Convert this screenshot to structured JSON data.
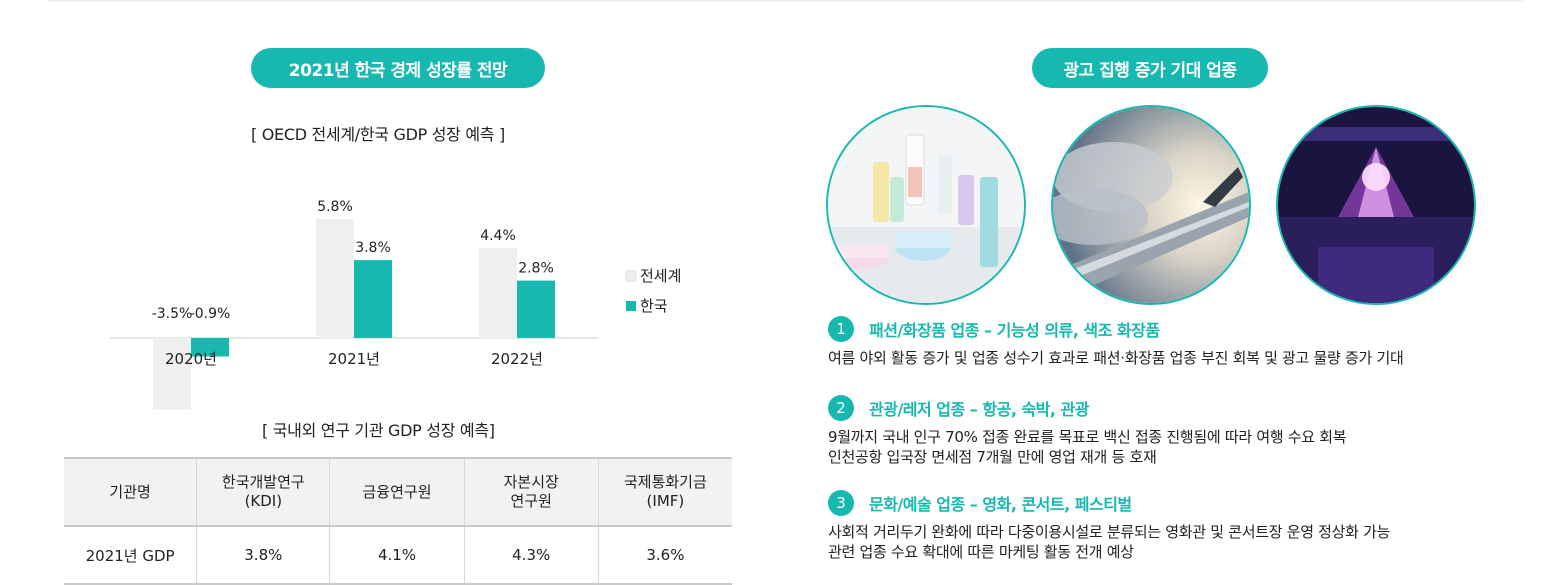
{
  "left": {
    "pill": "2021년 한국 경제 성장률 전망",
    "chart_subtitle": "[ OECD 전세계/한국 GDP 성장 예측 ]",
    "table_subtitle": "[ 국내외 연구 기관 GDP 성장 예측]",
    "table": {
      "headers": [
        [
          "기관명"
        ],
        [
          "한국개발연구",
          "(KDI)"
        ],
        [
          "금융연구원"
        ],
        [
          "자본시장",
          "연구원"
        ],
        [
          "국제통화기금",
          "(IMF)"
        ]
      ],
      "row": [
        "2021년 GDP",
        "3.8%",
        "4.1%",
        "4.3%",
        "3.6%"
      ]
    }
  },
  "chart_data": {
    "type": "bar",
    "categories": [
      "2020년",
      "2021년",
      "2022년"
    ],
    "series": [
      {
        "name": "전세계",
        "values": [
          -3.5,
          5.8,
          4.4
        ],
        "labels": [
          "-3.5%",
          "5.8%",
          "4.4%"
        ],
        "color": "#efefef"
      },
      {
        "name": "한국",
        "values": [
          -0.9,
          3.8,
          2.8
        ],
        "labels": [
          "-0.9%",
          "3.8%",
          "2.8%"
        ],
        "color": "#16b8b0"
      }
    ],
    "legend": "right",
    "grid": false
  },
  "right": {
    "pill": "광고 집행 증가 기대 업종",
    "photos": [
      "cosmetics-photo",
      "airplane-photo",
      "concert-photo"
    ],
    "sectors": [
      {
        "num": "1",
        "title": "패션/화장품 업종 – 기능성 의류, 색조 화장품",
        "lines": [
          "여름 야외 활동 증가 및 업종 성수기 효과로 패션·화장품 업종 부진 회복 및 광고 물량 증가 기대"
        ]
      },
      {
        "num": "2",
        "title": "관광/레저 업종 – 항공, 숙박, 관광",
        "lines": [
          "9월까지 국내 인구 70% 접종 완료를 목표로 백신 접종 진행됨에 따라 여행 수요 회복",
          "인천공항 입국장 면세점 7개월 만에 영업 재개 등 호재"
        ]
      },
      {
        "num": "3",
        "title": "문화/예술 업종 – 영화, 콘서트, 페스티벌",
        "lines": [
          "사회적 거리두기 완화에 따라 다중이용시설로 분류되는 영화관 및 콘서트장 운영 정상화 가능",
          "관련 업종 수요 확대에 따른 마케팅 활동 전개 예상"
        ]
      }
    ]
  },
  "colors": {
    "accent": "#16b8b0",
    "world_bar": "#efefef"
  }
}
